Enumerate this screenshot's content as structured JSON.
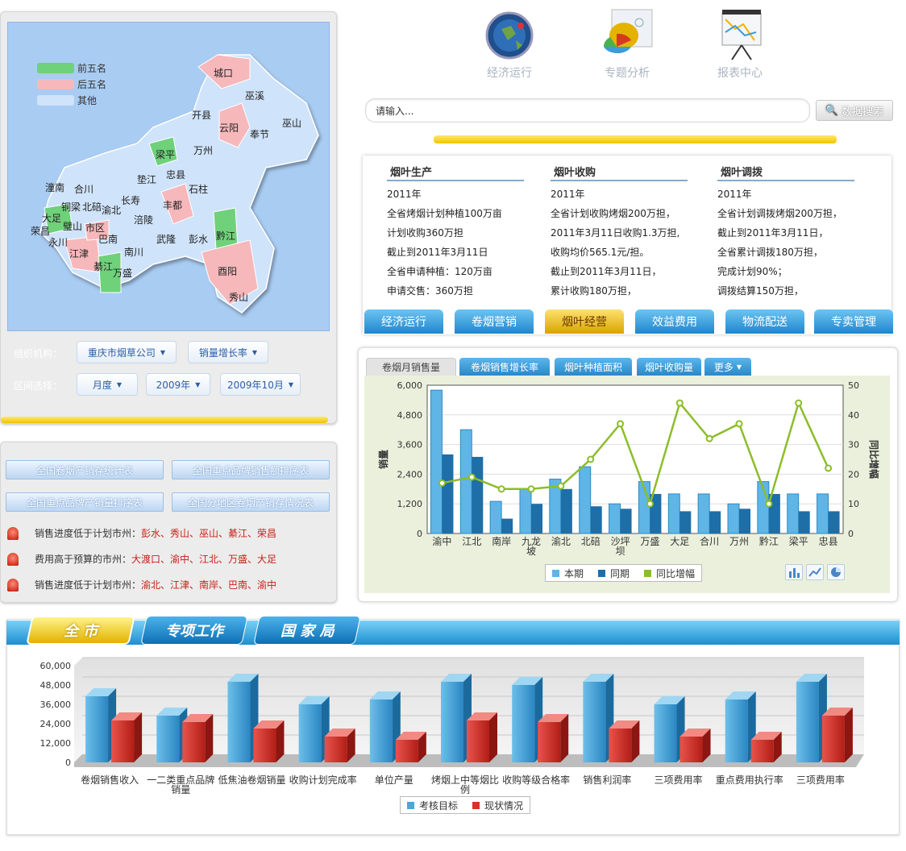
{
  "map": {
    "legend": [
      {
        "label": "前五名",
        "color": "#6fd17a"
      },
      {
        "label": "后五名",
        "color": "#f6b8bb"
      },
      {
        "label": "其他",
        "color": "#cfe3fa"
      }
    ],
    "cities": [
      "城口",
      "巫溪",
      "开县",
      "云阳",
      "奉节",
      "巫山",
      "梁平",
      "万州",
      "忠县",
      "垫江",
      "石柱",
      "潼南",
      "合川",
      "铜梁",
      "北碚",
      "渝北",
      "长寿",
      "大足",
      "璧山",
      "市区",
      "荣昌",
      "永川",
      "巴南",
      "涪陵",
      "丰都",
      "江津",
      "南川",
      "武隆",
      "彭水",
      "黔江",
      "綦江",
      "万盛",
      "酉阳",
      "秀山"
    ]
  },
  "filters": {
    "org_label": "组织机构：",
    "org_value": "重庆市烟草公司",
    "metric_value": "销量增长率",
    "range_label": "区间选择：",
    "period_value": "月度",
    "year_value": "2009年",
    "month_value": "2009年10月"
  },
  "reports": [
    "全国卷烟产销存统计表",
    "全国重点品牌销售额排序表",
    "全国重点品牌产销量排序表",
    "全国分地区卷烟产销存情况表"
  ],
  "alerts": [
    {
      "text": "销售进度低于计划市州：",
      "cities": "彭水、秀山、巫山、綦江、荣昌"
    },
    {
      "text": "费用高于预算的市州：",
      "cities": "大渡口、渝中、江北、万盛、大足"
    },
    {
      "text": "销售进度低于计划市州：",
      "cities": "渝北、江津、南岸、巴南、渝中"
    }
  ],
  "top_nav": [
    {
      "label": "经济运行",
      "icon": "globe-icon"
    },
    {
      "label": "专题分析",
      "icon": "pie-chart-board-icon"
    },
    {
      "label": "报表中心",
      "icon": "line-chart-board-icon"
    }
  ],
  "search": {
    "placeholder": "请输入...",
    "button": "数据搜索"
  },
  "info_columns": [
    {
      "title": "烟叶生产",
      "lines": [
        "2011年",
        "全省烤烟计划种植100万亩",
        "计划收购360万担",
        "截止到2011年3月11日",
        "全省申请种植：120万亩",
        "申请交售：360万担"
      ]
    },
    {
      "title": "烟叶收购",
      "lines": [
        "2011年",
        "全省计划收购烤烟200万担，",
        "2011年3月11日收购1.3万担,",
        "收购均价565.1元/担。",
        "截止到2011年3月11日，",
        "累计收购180万担，"
      ]
    },
    {
      "title": "烟叶调拨",
      "lines": [
        "2011年",
        "全省计划调拨烤烟200万担，",
        "截止到2011年3月11日，",
        "全省累计调拨180万担，",
        "完成计划90%；",
        "调拨结算150万担，"
      ]
    }
  ],
  "section_tabs": [
    "经济运行",
    "卷烟营销",
    "烟叶经营",
    "效益费用",
    "物流配送",
    "专卖管理"
  ],
  "section_active": 2,
  "chart_tabs": [
    "卷烟月销售量",
    "卷烟销售增长率",
    "烟叶种植面积",
    "烟叶收购量",
    "更多"
  ],
  "chart_tabs_active": 0,
  "bottom_tabs": [
    "全 市",
    "专项工作",
    "国 家 局"
  ],
  "chart_data": [
    {
      "type": "bar",
      "categories": [
        "渝中",
        "江北",
        "南岸",
        "九龙坡",
        "渝北",
        "北碚",
        "沙坪坝",
        "万盛",
        "大足",
        "合川",
        "万州",
        "黔江",
        "梁平",
        "忠县"
      ],
      "series": [
        {
          "name": "本期",
          "values": [
            5800,
            4200,
            1300,
            1800,
            2200,
            2700,
            1200,
            2100,
            1600,
            1600,
            1200,
            2100,
            1600,
            1600
          ],
          "color": "#5fb5e6"
        },
        {
          "name": "同期",
          "values": [
            3200,
            3100,
            600,
            1200,
            1800,
            1100,
            1000,
            1600,
            900,
            900,
            1000,
            1600,
            900,
            900
          ],
          "color": "#1e6ea8"
        },
        {
          "name": "同比增幅",
          "type": "line",
          "axis": "right",
          "values": [
            17,
            19,
            15,
            15,
            16,
            25,
            37,
            10,
            44,
            32,
            37,
            10,
            44,
            22
          ],
          "color": "#8cbd2a"
        }
      ],
      "xlabel": "",
      "ylabel": "销量",
      "y2label": "同比增幅",
      "ylim": [
        0,
        6000
      ],
      "y2lim": [
        0,
        50
      ],
      "yticks": [
        "0",
        "1,200",
        "2,400",
        "3,600",
        "4,800",
        "6,000"
      ],
      "y2ticks": [
        "0",
        "10",
        "20",
        "30",
        "40",
        "50"
      ],
      "grid": true,
      "legend": "bottom"
    },
    {
      "type": "bar",
      "categories": [
        "卷烟销售收入",
        "一二类重点品牌销量",
        "低焦油卷烟销量",
        "收购计划完成率",
        "单位产量",
        "烤烟上中等烟比例",
        "收购等级合格率",
        "销售利润率",
        "三项费用率",
        "重点费用执行率",
        "三项费用率"
      ],
      "series": [
        {
          "name": "考核目标",
          "values": [
            41000,
            29000,
            50000,
            36000,
            39000,
            50000,
            48000,
            50000,
            36000,
            39000,
            50000
          ],
          "color": "#49a7da"
        },
        {
          "name": "现状情况",
          "values": [
            26000,
            25000,
            21000,
            16000,
            14000,
            26000,
            25000,
            21000,
            16000,
            14000,
            29000
          ],
          "color": "#d8322b"
        }
      ],
      "ylim": [
        0,
        60000
      ],
      "yticks": [
        "0",
        "12,000",
        "24,000",
        "36,000",
        "48,000",
        "60,000"
      ],
      "grid": true,
      "legend": "bottom"
    }
  ]
}
